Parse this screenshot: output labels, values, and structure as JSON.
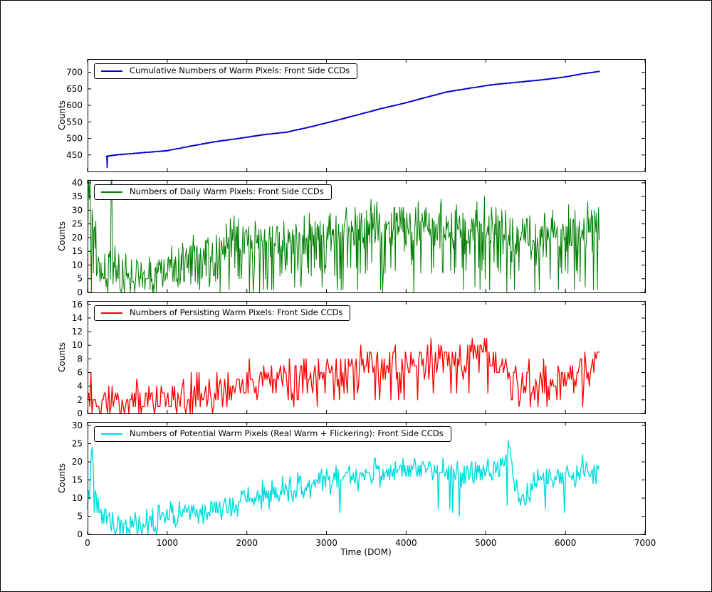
{
  "figure": {
    "xlabel": "Time (DOM)",
    "xlim": [
      0,
      7000
    ],
    "xticks": [
      0,
      1000,
      2000,
      3000,
      4000,
      5000,
      6000,
      7000
    ],
    "background": "#ffffff"
  },
  "chart_data": [
    {
      "type": "line",
      "name": "cumulative",
      "legend": "Cumulative Numbers of Warm Pixels: Front Side CCDs",
      "ylabel": "Counts",
      "color": "#0000cd",
      "lw": 1.8,
      "ylim": [
        400,
        740
      ],
      "yticks": [
        450,
        500,
        550,
        600,
        650,
        700
      ],
      "xlim": [
        0,
        7000
      ],
      "grid": false,
      "legend_position": "upper left",
      "seed": 7,
      "step": 4,
      "noise": 0.5,
      "dipP": 0,
      "dropP": 0,
      "clip": 735,
      "anchors": [
        [
          230,
          445
        ],
        [
          242,
          446
        ],
        [
          246,
          412
        ],
        [
          250,
          447
        ],
        [
          400,
          451
        ],
        [
          700,
          457
        ],
        [
          1000,
          463
        ],
        [
          1300,
          477
        ],
        [
          1600,
          490
        ],
        [
          1900,
          500
        ],
        [
          2200,
          511
        ],
        [
          2500,
          519
        ],
        [
          2800,
          535
        ],
        [
          3100,
          553
        ],
        [
          3400,
          572
        ],
        [
          3700,
          591
        ],
        [
          4000,
          608
        ],
        [
          4200,
          621
        ],
        [
          4500,
          640
        ],
        [
          4800,
          652
        ],
        [
          5100,
          663
        ],
        [
          5400,
          670
        ],
        [
          5700,
          677
        ],
        [
          6000,
          686
        ],
        [
          6200,
          695
        ],
        [
          6430,
          703
        ]
      ]
    },
    {
      "type": "line",
      "name": "daily",
      "legend": "Numbers of Daily Warm Pixels: Front Side CCDs",
      "ylabel": "Counts",
      "color": "#008000",
      "lw": 1.0,
      "ylim": [
        0,
        41
      ],
      "yticks": [
        0,
        5,
        10,
        15,
        20,
        25,
        30,
        35,
        40
      ],
      "xlim": [
        0,
        7000
      ],
      "grid": false,
      "legend_position": "upper left",
      "seed": 13,
      "step": 8,
      "noise": 9,
      "dipP": 0.12,
      "dropP": 0.05,
      "clip": 41,
      "anchors": [
        [
          0,
          36
        ],
        [
          40,
          41
        ],
        [
          90,
          20
        ],
        [
          130,
          11
        ],
        [
          180,
          8
        ],
        [
          240,
          9
        ],
        [
          290,
          12
        ],
        [
          296,
          40
        ],
        [
          306,
          40
        ],
        [
          312,
          10
        ],
        [
          360,
          7
        ],
        [
          450,
          5
        ],
        [
          600,
          5
        ],
        [
          750,
          6
        ],
        [
          900,
          8
        ],
        [
          1050,
          9
        ],
        [
          1200,
          11
        ],
        [
          1350,
          13
        ],
        [
          1500,
          14
        ],
        [
          1650,
          16
        ],
        [
          1800,
          17
        ],
        [
          1950,
          18
        ],
        [
          2100,
          18
        ],
        [
          2250,
          19
        ],
        [
          2400,
          20
        ],
        [
          2550,
          20
        ],
        [
          2700,
          21
        ],
        [
          2850,
          22
        ],
        [
          3000,
          22
        ],
        [
          3150,
          22
        ],
        [
          3300,
          23
        ],
        [
          3450,
          24
        ],
        [
          3600,
          24
        ],
        [
          3750,
          24
        ],
        [
          3900,
          25
        ],
        [
          4050,
          25
        ],
        [
          4200,
          25
        ],
        [
          4350,
          24
        ],
        [
          4500,
          24
        ],
        [
          4650,
          24
        ],
        [
          4800,
          25
        ],
        [
          4950,
          25
        ],
        [
          5100,
          24
        ],
        [
          5250,
          23
        ],
        [
          5400,
          21
        ],
        [
          5550,
          20
        ],
        [
          5700,
          21
        ],
        [
          5850,
          22
        ],
        [
          6000,
          22
        ],
        [
          6150,
          23
        ],
        [
          6300,
          23
        ],
        [
          6430,
          24
        ]
      ]
    },
    {
      "type": "line",
      "name": "persisting",
      "legend": "Numbers of Persisting Warm Pixels: Front Side CCDs",
      "ylabel": "Counts",
      "color": "#ff0000",
      "lw": 1.3,
      "ylim": [
        0,
        16.5
      ],
      "yticks": [
        0,
        2,
        4,
        6,
        8,
        10,
        12,
        14,
        16
      ],
      "xlim": [
        0,
        7000
      ],
      "grid": false,
      "legend_position": "upper left",
      "seed": 29,
      "step": 14,
      "noise": 3.2,
      "dipP": 0.08,
      "dropP": 0.015,
      "clip": 15.8,
      "anchors": [
        [
          0,
          3
        ],
        [
          50,
          4
        ],
        [
          100,
          2
        ],
        [
          200,
          1.4
        ],
        [
          350,
          1.4
        ],
        [
          500,
          1.5
        ],
        [
          650,
          1.5
        ],
        [
          800,
          1.8
        ],
        [
          950,
          2
        ],
        [
          1100,
          2
        ],
        [
          1250,
          2.2
        ],
        [
          1400,
          2.6
        ],
        [
          1550,
          3
        ],
        [
          1700,
          3.4
        ],
        [
          1850,
          3.8
        ],
        [
          2000,
          4.2
        ],
        [
          2150,
          4.6
        ],
        [
          2300,
          5
        ],
        [
          2450,
          5.2
        ],
        [
          2600,
          5.4
        ],
        [
          2750,
          5.6
        ],
        [
          2900,
          5.8
        ],
        [
          3050,
          6
        ],
        [
          3200,
          6
        ],
        [
          3350,
          6.4
        ],
        [
          3500,
          6.8
        ],
        [
          3650,
          7
        ],
        [
          3800,
          7
        ],
        [
          3950,
          7.4
        ],
        [
          4100,
          7.6
        ],
        [
          4250,
          7.8
        ],
        [
          4400,
          7.4
        ],
        [
          4550,
          7.2
        ],
        [
          4700,
          8
        ],
        [
          4850,
          9
        ],
        [
          4950,
          9.6
        ],
        [
          5050,
          8
        ],
        [
          5200,
          6.4
        ],
        [
          5350,
          5
        ],
        [
          5500,
          4.2
        ],
        [
          5650,
          4
        ],
        [
          5800,
          4.6
        ],
        [
          5950,
          5.4
        ],
        [
          6100,
          6
        ],
        [
          6250,
          6.4
        ],
        [
          6380,
          8
        ],
        [
          6430,
          11
        ]
      ]
    },
    {
      "type": "line",
      "name": "potential",
      "legend": "Numbers of Potential Warm Pixels (Real Warm + Flickering): Front Side CCDs",
      "ylabel": "Counts",
      "color": "#00dddd",
      "lw": 1.4,
      "ylim": [
        0,
        31
      ],
      "yticks": [
        0,
        5,
        10,
        15,
        20,
        25,
        30
      ],
      "xlim": [
        0,
        7000
      ],
      "grid": false,
      "legend_position": "upper left",
      "seed": 41,
      "step": 12,
      "noise": 3.8,
      "dipP": 0.04,
      "dropP": 0.004,
      "clip": 29.7,
      "anchors": [
        [
          0,
          5
        ],
        [
          30,
          16
        ],
        [
          55,
          28
        ],
        [
          85,
          14
        ],
        [
          120,
          8
        ],
        [
          180,
          5
        ],
        [
          260,
          3.5
        ],
        [
          400,
          2.5
        ],
        [
          550,
          2.5
        ],
        [
          700,
          3
        ],
        [
          850,
          4
        ],
        [
          1000,
          5
        ],
        [
          1150,
          5.5
        ],
        [
          1300,
          6
        ],
        [
          1450,
          6.5
        ],
        [
          1600,
          7
        ],
        [
          1750,
          8
        ],
        [
          1900,
          9
        ],
        [
          2050,
          10.5
        ],
        [
          2200,
          11
        ],
        [
          2350,
          12
        ],
        [
          2500,
          12
        ],
        [
          2650,
          13
        ],
        [
          2800,
          14
        ],
        [
          2950,
          15
        ],
        [
          3100,
          15
        ],
        [
          3250,
          15.5
        ],
        [
          3400,
          16
        ],
        [
          3550,
          17
        ],
        [
          3700,
          17
        ],
        [
          3850,
          17.5
        ],
        [
          4000,
          18
        ],
        [
          4150,
          18
        ],
        [
          4300,
          18
        ],
        [
          4450,
          17.5
        ],
        [
          4600,
          17
        ],
        [
          4750,
          17
        ],
        [
          4900,
          17.5
        ],
        [
          5050,
          18
        ],
        [
          5200,
          19
        ],
        [
          5280,
          24
        ],
        [
          5330,
          18
        ],
        [
          5420,
          9
        ],
        [
          5500,
          11
        ],
        [
          5650,
          14
        ],
        [
          5800,
          16
        ],
        [
          5950,
          16
        ],
        [
          6100,
          16.5
        ],
        [
          6250,
          17
        ],
        [
          6430,
          16
        ]
      ]
    }
  ]
}
